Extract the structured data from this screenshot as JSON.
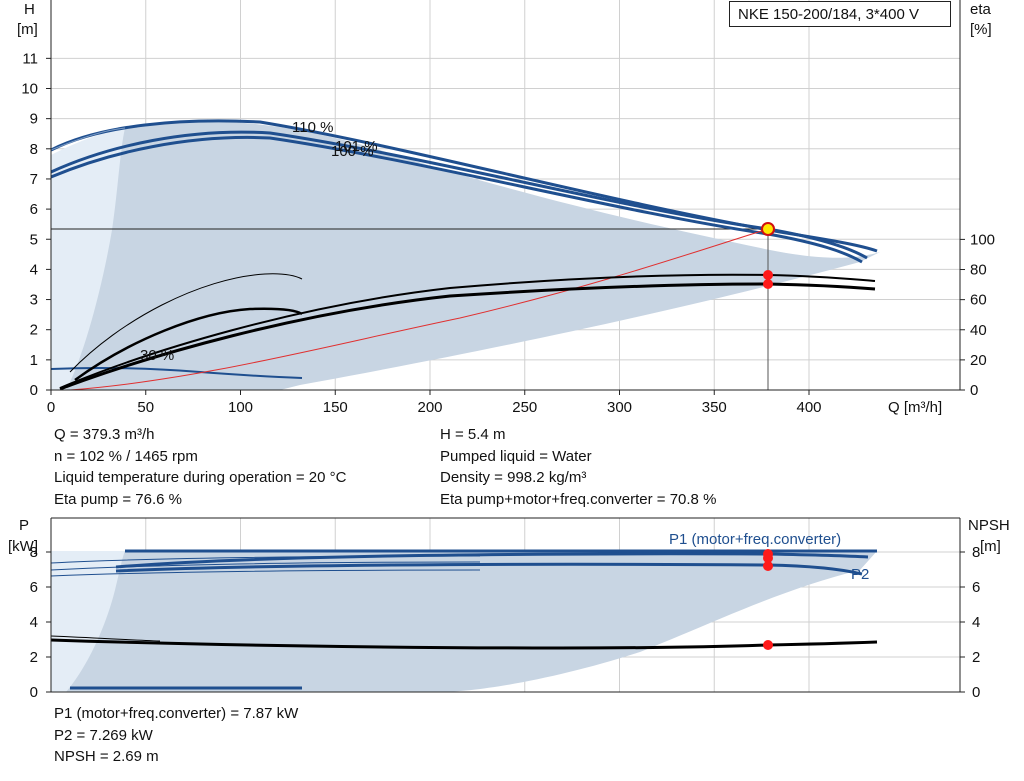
{
  "title": "NKE 150-200/184, 3*400 V",
  "top_chart": {
    "y_left_label_1": "H",
    "y_left_label_2": "[m]",
    "y_right_label_1": "eta",
    "y_right_label_2": "[%]",
    "x_label": "Q [m³/h]",
    "x_ticks": [
      "0",
      "50",
      "100",
      "150",
      "200",
      "250",
      "300",
      "350",
      "400"
    ],
    "y_left_ticks": [
      "0",
      "1",
      "2",
      "3",
      "4",
      "5",
      "6",
      "7",
      "8",
      "9",
      "10",
      "11"
    ],
    "y_right_ticks": [
      "0",
      "20",
      "40",
      "60",
      "80",
      "100"
    ],
    "curve_labels": [
      "110 %",
      "101 %",
      "100 %",
      "30 %"
    ]
  },
  "bottom_chart": {
    "y_left_label_1": "P",
    "y_left_label_2": "[kW]",
    "y_right_label_1": "NPSH",
    "y_right_label_2": "[m]",
    "y_left_ticks": [
      "0",
      "2",
      "4",
      "6",
      "8"
    ],
    "y_right_ticks": [
      "0",
      "2",
      "4",
      "6",
      "8"
    ],
    "series_label_p1": "P1 (motor+freq.converter)",
    "series_label_p2": "P2"
  },
  "info_top_left": [
    "Q = 379.3 m³/h",
    "n = 102 % / 1465 rpm",
    "Liquid temperature during operation = 20 °C",
    "Eta pump = 76.6 %"
  ],
  "info_top_right": [
    "H = 5.4 m",
    "Pumped liquid = Water",
    "Density = 998.2 kg/m³",
    "Eta pump+motor+freq.converter = 70.8 %"
  ],
  "info_bottom": [
    "P1 (motor+freq.converter) = 7.87 kW",
    "P2 = 7.269 kW",
    "NPSH = 2.69 m"
  ],
  "colors": {
    "curve_blue": "#1f4f8f",
    "area_fill": "#c8d5e3",
    "area_light": "#e4edf6",
    "grid": "#d0d0d0",
    "system_curve": "#e03030",
    "marker_red": "#ff1a1a",
    "marker_yellow": "#ffe600"
  },
  "chart_data": [
    {
      "type": "line",
      "title": "NKE 150-200/184, 3*400 V",
      "xlabel": "Q [m³/h]",
      "ylabel": "H [m]",
      "y2label": "eta [%]",
      "xlim": [
        0,
        475
      ],
      "ylim": [
        0,
        12.7
      ],
      "y2lim": [
        0,
        100
      ],
      "grid": true,
      "operating_point": {
        "Q": 379.3,
        "H": 5.4,
        "eta_pump": 76.6,
        "eta_total": 70.8
      },
      "series": [
        {
          "name": "110 %",
          "axis": "H",
          "x": [
            0,
            40,
            80,
            110,
            150,
            200,
            250,
            300,
            350,
            380,
            420,
            437
          ],
          "y": [
            8.0,
            8.6,
            8.9,
            8.95,
            8.7,
            8.1,
            7.3,
            6.6,
            5.9,
            5.5,
            4.95,
            4.6
          ]
        },
        {
          "name": "101 %",
          "axis": "H",
          "x": [
            0,
            35,
            70,
            100,
            125,
            150,
            200,
            250,
            300,
            350,
            379.3,
            400,
            432
          ],
          "y": [
            7.35,
            7.9,
            8.35,
            8.55,
            8.6,
            8.45,
            7.9,
            7.15,
            6.45,
            5.8,
            5.4,
            5.1,
            4.45
          ]
        },
        {
          "name": "100 %",
          "axis": "H",
          "x": [
            0,
            35,
            70,
            100,
            125,
            150,
            200,
            250,
            300,
            350,
            380,
            400,
            430
          ],
          "y": [
            7.2,
            7.75,
            8.2,
            8.45,
            8.5,
            8.35,
            7.8,
            7.05,
            6.35,
            5.7,
            5.3,
            5.0,
            4.3
          ]
        },
        {
          "name": "30 %",
          "axis": "H",
          "x": [
            0,
            50,
            100,
            133
          ],
          "y": [
            0.72,
            0.72,
            0.6,
            0.4
          ]
        },
        {
          "name": "system curve",
          "axis": "H",
          "x": [
            0,
            50,
            100,
            150,
            200,
            250,
            300,
            350,
            379.3
          ],
          "y": [
            0,
            0.1,
            0.38,
            0.85,
            1.5,
            2.35,
            3.4,
            4.6,
            5.4
          ]
        },
        {
          "name": "eta pump",
          "axis": "eta",
          "x": [
            10,
            50,
            100,
            150,
            200,
            250,
            300,
            350,
            380,
            400,
            438
          ],
          "y": [
            2,
            17,
            33,
            45,
            56,
            65,
            71,
            75,
            76.6,
            76,
            73
          ]
        },
        {
          "name": "eta total",
          "axis": "eta",
          "x": [
            10,
            50,
            100,
            150,
            200,
            250,
            300,
            350,
            380,
            400,
            438
          ],
          "y": [
            2,
            16,
            31,
            43,
            53,
            61,
            66.5,
            70,
            70.8,
            70,
            67
          ]
        }
      ]
    },
    {
      "type": "line",
      "xlabel": "Q [m³/h]",
      "ylabel": "P [kW]",
      "y2label": "NPSH [m]",
      "xlim": [
        0,
        475
      ],
      "ylim": [
        0,
        8.5
      ],
      "y2lim": [
        0,
        8.5
      ],
      "grid": true,
      "operating_point": {
        "Q": 379.3,
        "P1": 7.87,
        "P2": 7.269,
        "NPSH": 2.69
      },
      "series": [
        {
          "name": "P1 (motor+freq.converter)",
          "axis": "P",
          "x": [
            40,
            100,
            200,
            300,
            379.3,
            437
          ],
          "y": [
            8.0,
            8.05,
            8.05,
            8.05,
            8.05,
            8.05
          ]
        },
        {
          "name": "P1 101 %",
          "axis": "P",
          "x": [
            35,
            100,
            200,
            300,
            379.3,
            432
          ],
          "y": [
            7.2,
            7.6,
            7.8,
            7.87,
            7.87,
            7.5
          ]
        },
        {
          "name": "P2",
          "axis": "P",
          "x": [
            35,
            100,
            200,
            300,
            379.3,
            430
          ],
          "y": [
            6.8,
            7.1,
            7.25,
            7.27,
            7.269,
            7.0
          ]
        },
        {
          "name": "NPSH",
          "axis": "NPSH",
          "x": [
            0,
            50,
            100,
            150,
            200,
            250,
            300,
            350,
            379.3,
            437
          ],
          "y": [
            3.0,
            2.9,
            2.78,
            2.7,
            2.65,
            2.62,
            2.63,
            2.67,
            2.69,
            2.8
          ]
        },
        {
          "name": "P 30 %",
          "axis": "P",
          "x": [
            10,
            133
          ],
          "y": [
            0.2,
            0.2
          ]
        }
      ]
    }
  ]
}
